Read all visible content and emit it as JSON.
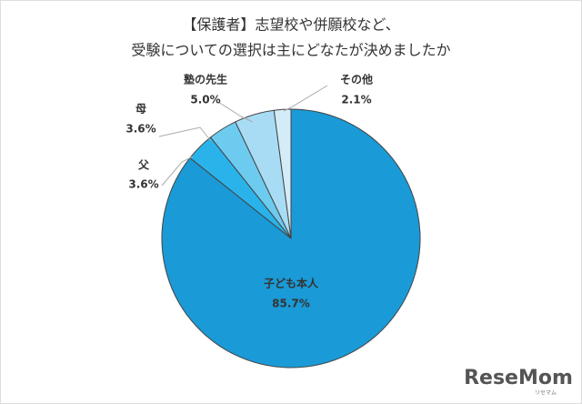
{
  "chart_data": {
    "type": "pie",
    "title": [
      "【保護者】志望校や併願校など、",
      "受験についての選択は主にどなたが決めましたか"
    ],
    "categories": [
      "子ども本人",
      "父",
      "母",
      "塾の先生",
      "その他"
    ],
    "values": [
      85.7,
      3.6,
      3.6,
      5.0,
      2.1
    ],
    "value_labels": [
      "85.7%",
      "3.6%",
      "3.6%",
      "5.0%",
      "2.1%"
    ],
    "colors": [
      "#1a9ad6",
      "#2ab3ea",
      "#6ecbf0",
      "#a8dcf5",
      "#d4ecf8"
    ],
    "watermark": "ReseMom",
    "watermark_sub": "リセマム"
  }
}
